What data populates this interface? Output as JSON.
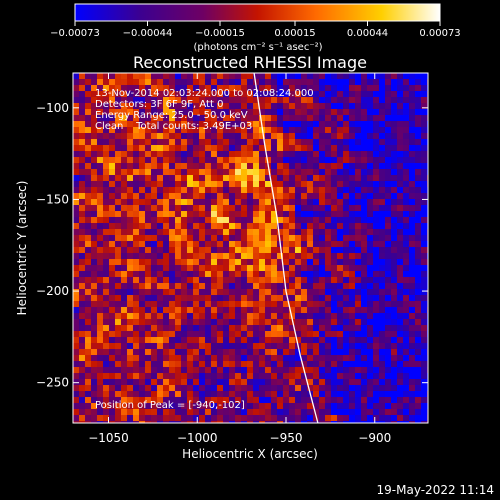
{
  "chart_data": {
    "type": "heatmap",
    "title": "Reconstructed RHESSI Image",
    "xlabel": "Heliocentric X (arcsec)",
    "ylabel": "Heliocentric Y (arcsec)",
    "xlim": [
      -1070,
      -870
    ],
    "ylim": [
      -272,
      -81
    ],
    "x_ticks": [
      -1050,
      -1000,
      -950,
      -900
    ],
    "y_ticks": [
      -250,
      -200,
      -150,
      -100
    ],
    "x_tick_labels": [
      "−1050",
      "−1000",
      "−950",
      "−900"
    ],
    "y_tick_labels": [
      "−250",
      "−200",
      "−150",
      "−100"
    ],
    "grid": false,
    "colorbar": {
      "ticks": [
        -0.00073,
        -0.00044,
        -0.00015,
        0.00015,
        0.00044,
        0.00073
      ],
      "tick_labels": [
        "−0.00073",
        "−0.00044",
        "−0.00015",
        "0.00015",
        "0.00044",
        "0.00073"
      ],
      "units_label": "(photons cm⁻² s⁻¹ asec⁻²)",
      "colormap": [
        "#0000ff",
        "#3c0090",
        "#6e0064",
        "#c41400",
        "#ff6a00",
        "#ffcf00",
        "#ffffff"
      ]
    },
    "annotations": [
      "13-Nov-2014 02:03:24.000 to 02:08:24.000",
      "Detectors: 3F 6F 9F, Att 0",
      "Energy Range: 25.0 - 50.0 keV",
      "Clean    Total counts: 3.49E+03"
    ],
    "peak_label": "Position of Peak = [-940,-102]",
    "peak_position": [
      -940,
      -102
    ],
    "limb_curve": [
      [
        -968,
        -81
      ],
      [
        -962,
        -120
      ],
      [
        -955,
        -160
      ],
      [
        -950,
        -200
      ],
      [
        -942,
        -235
      ],
      [
        -932,
        -272
      ]
    ],
    "intensity_blobs": [
      {
        "x": -985,
        "y": -160,
        "peak": 1.0
      },
      {
        "x": -1040,
        "y": -110,
        "peak": 0.8
      },
      {
        "x": -1040,
        "y": -240,
        "peak": 0.7
      },
      {
        "x": -940,
        "y": -200,
        "peak": 0.75
      },
      {
        "x": -945,
        "y": -120,
        "peak": 0.7
      },
      {
        "x": -1060,
        "y": -175,
        "peak": 0.6
      }
    ]
  },
  "footer": {
    "timestamp": "19-May-2022 11:14"
  }
}
